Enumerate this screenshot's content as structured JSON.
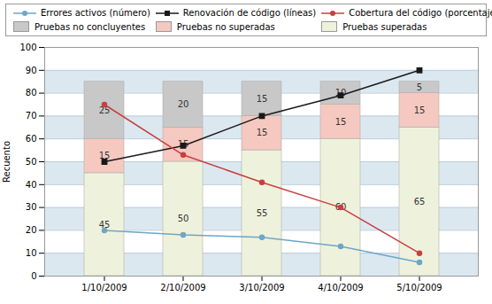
{
  "chart_data": {
    "type": "bar",
    "stacked": true,
    "categories": [
      "1/10/2009",
      "2/10/2009",
      "3/10/2009",
      "4/10/2009",
      "5/10/2009"
    ],
    "ylabel": "Recuento",
    "ylim": [
      0,
      100
    ],
    "yticks": [
      0,
      10,
      20,
      30,
      40,
      50,
      60,
      70,
      80,
      90,
      100
    ],
    "grid": true,
    "legend": "top",
    "series": [
      {
        "name": "Pruebas superadas",
        "type": "bar",
        "color": "#eef2dc",
        "data_labels": true,
        "values": [
          45,
          50,
          55,
          60,
          65
        ]
      },
      {
        "name": "Pruebas no superadas",
        "type": "bar",
        "color": "#f5c8c0",
        "data_labels": true,
        "values": [
          15,
          15,
          15,
          15,
          15
        ]
      },
      {
        "name": "Pruebas no concluyentes",
        "type": "bar",
        "color": "#c8c8c8",
        "data_labels": true,
        "values": [
          25,
          20,
          15,
          10,
          5
        ]
      },
      {
        "name": "Errores activos (número)",
        "type": "line",
        "color": "#6ea6c8",
        "marker": "circle",
        "values": [
          20,
          18,
          17,
          13,
          6
        ]
      },
      {
        "name": "Renovación de código (líneas)",
        "type": "line",
        "color": "#1a1a1a",
        "marker": "square",
        "values": [
          50,
          57,
          70,
          79,
          90
        ]
      },
      {
        "name": "Cobertura del código (porcentaje)",
        "type": "line",
        "color": "#c84040",
        "marker": "circle",
        "values": [
          75,
          53,
          41,
          30,
          10
        ]
      }
    ]
  }
}
